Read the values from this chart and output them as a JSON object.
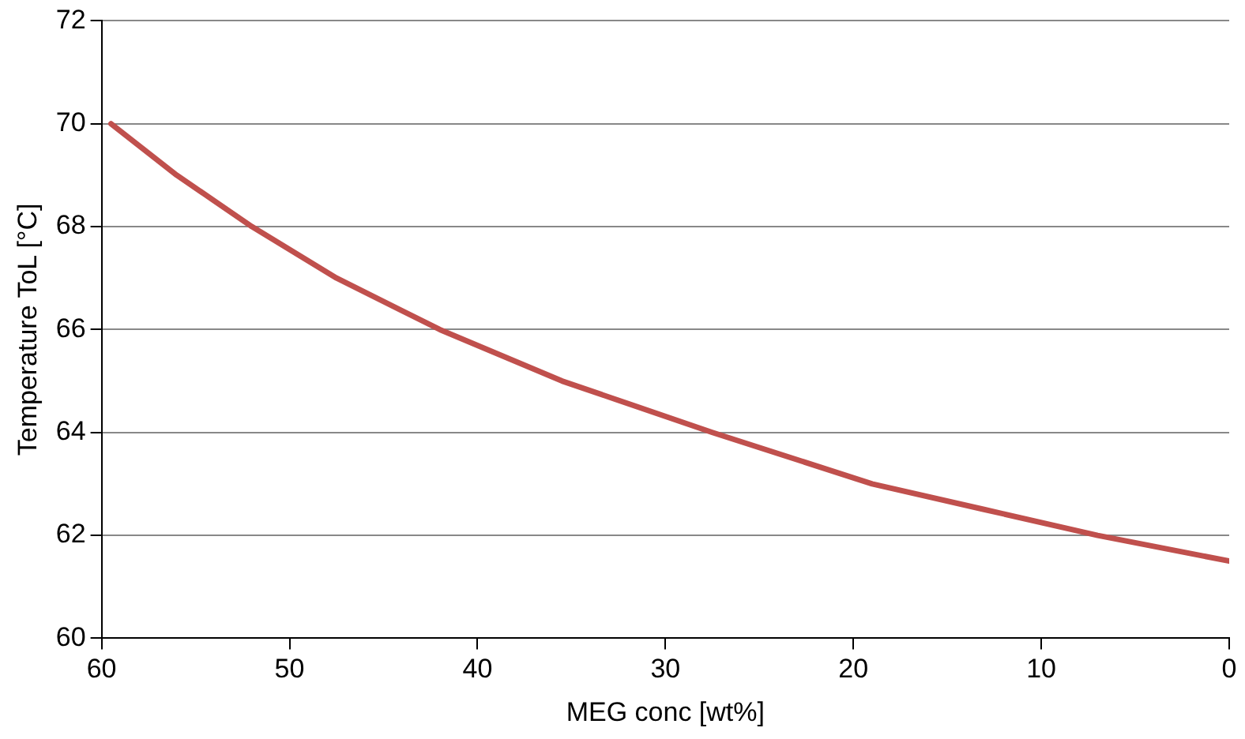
{
  "chart_data": {
    "type": "line",
    "xlabel": "MEG conc [wt%]",
    "ylabel": "Temperature ToL [°C]",
    "x": [
      59.5,
      56,
      52,
      47.5,
      42,
      35.5,
      27.5,
      19,
      13,
      7,
      0
    ],
    "series": [
      {
        "color": "#c0504d",
        "values": [
          70,
          69,
          68,
          67,
          66,
          65,
          64,
          63,
          62.5,
          62,
          61.5
        ]
      }
    ],
    "xlim": [
      60,
      0
    ],
    "xticks": [
      60,
      50,
      40,
      30,
      20,
      10,
      0
    ],
    "ylim": [
      60,
      72
    ],
    "yticks": [
      60,
      62,
      64,
      66,
      68,
      70,
      72
    ],
    "grid": "y",
    "legend": false,
    "marker": "none",
    "line_style": "solid"
  }
}
